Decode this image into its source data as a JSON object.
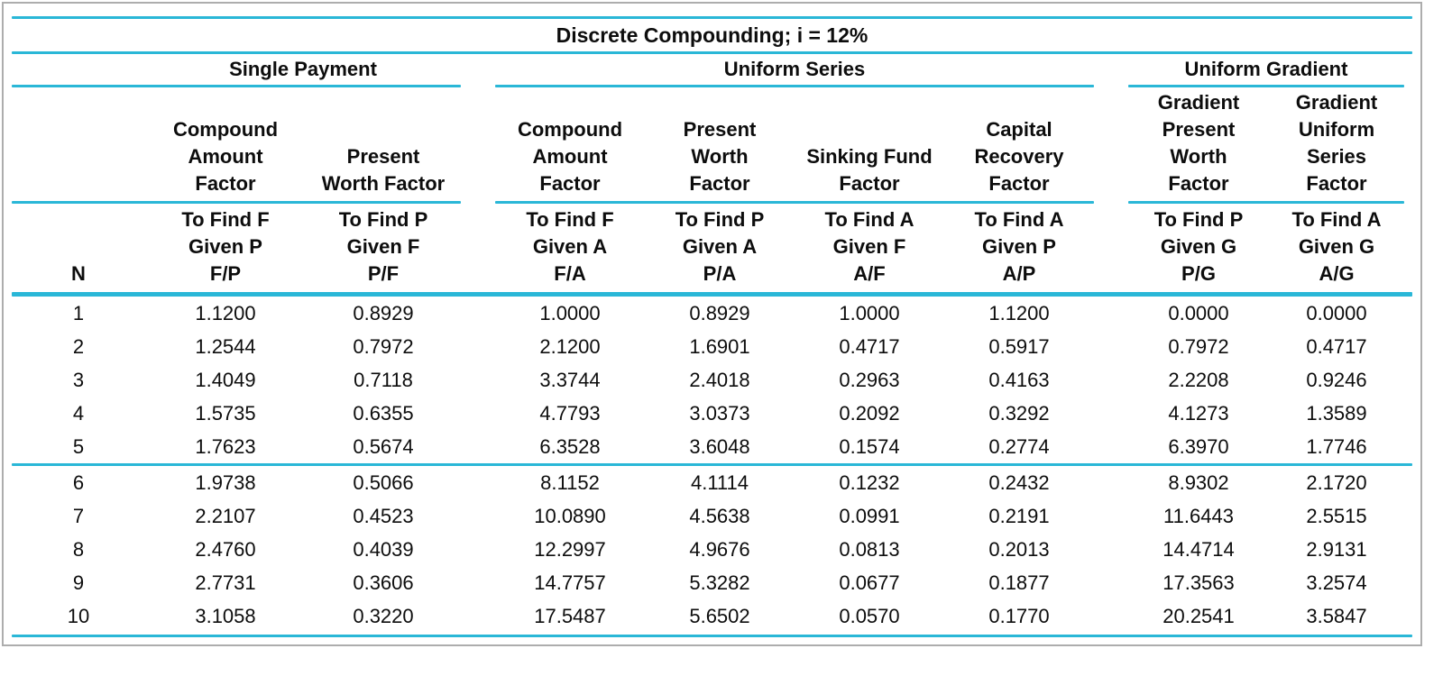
{
  "colors": {
    "accent": "#2ab7d7",
    "border": "#adadad",
    "text": "#0d0d0d"
  },
  "title": "Discrete Compounding; i = 12%",
  "groups": {
    "single_payment": "Single Payment",
    "uniform_series": "Uniform Series",
    "uniform_gradient": "Uniform Gradient"
  },
  "columns": {
    "n": "N",
    "headers": [
      {
        "factor": "Compound\nAmount\nFactor",
        "sub": "To Find F\nGiven P\nF/P"
      },
      {
        "factor": "Present\nWorth Factor",
        "sub": "To Find P\nGiven F\nP/F"
      },
      {
        "factor": "Compound\nAmount\nFactor",
        "sub": "To Find F\nGiven A\nF/A"
      },
      {
        "factor": "Present\nWorth\nFactor",
        "sub": "To Find P\nGiven A\nP/A"
      },
      {
        "factor": "Sinking Fund\nFactor",
        "sub": "To Find A\nGiven F\nA/F"
      },
      {
        "factor": "Capital\nRecovery\nFactor",
        "sub": "To Find A\nGiven P\nA/P"
      },
      {
        "factor": "Gradient\nPresent\nWorth\nFactor",
        "sub": "To Find P\nGiven G\nP/G"
      },
      {
        "factor": "Gradient\nUniform\nSeries\nFactor",
        "sub": "To Find A\nGiven G\nA/G"
      }
    ]
  },
  "table": {
    "row_groups": [
      {
        "rows": [
          {
            "n": "1",
            "values": [
              "1.1200",
              "0.8929",
              "1.0000",
              "0.8929",
              "1.0000",
              "1.1200",
              "0.0000",
              "0.0000"
            ]
          },
          {
            "n": "2",
            "values": [
              "1.2544",
              "0.7972",
              "2.1200",
              "1.6901",
              "0.4717",
              "0.5917",
              "0.7972",
              "0.4717"
            ]
          },
          {
            "n": "3",
            "values": [
              "1.4049",
              "0.7118",
              "3.3744",
              "2.4018",
              "0.2963",
              "0.4163",
              "2.2208",
              "0.9246"
            ]
          },
          {
            "n": "4",
            "values": [
              "1.5735",
              "0.6355",
              "4.7793",
              "3.0373",
              "0.2092",
              "0.3292",
              "4.1273",
              "1.3589"
            ]
          },
          {
            "n": "5",
            "values": [
              "1.7623",
              "0.5674",
              "6.3528",
              "3.6048",
              "0.1574",
              "0.2774",
              "6.3970",
              "1.7746"
            ]
          }
        ]
      },
      {
        "rows": [
          {
            "n": "6",
            "values": [
              "1.9738",
              "0.5066",
              "8.1152",
              "4.1114",
              "0.1232",
              "0.2432",
              "8.9302",
              "2.1720"
            ]
          },
          {
            "n": "7",
            "values": [
              "2.2107",
              "0.4523",
              "10.0890",
              "4.5638",
              "0.0991",
              "0.2191",
              "11.6443",
              "2.5515"
            ]
          },
          {
            "n": "8",
            "values": [
              "2.4760",
              "0.4039",
              "12.2997",
              "4.9676",
              "0.0813",
              "0.2013",
              "14.4714",
              "2.9131"
            ]
          },
          {
            "n": "9",
            "values": [
              "2.7731",
              "0.3606",
              "14.7757",
              "5.3282",
              "0.0677",
              "0.1877",
              "17.3563",
              "3.2574"
            ]
          },
          {
            "n": "10",
            "values": [
              "3.1058",
              "0.3220",
              "17.5487",
              "5.6502",
              "0.0570",
              "0.1770",
              "20.2541",
              "3.5847"
            ]
          }
        ]
      }
    ]
  }
}
